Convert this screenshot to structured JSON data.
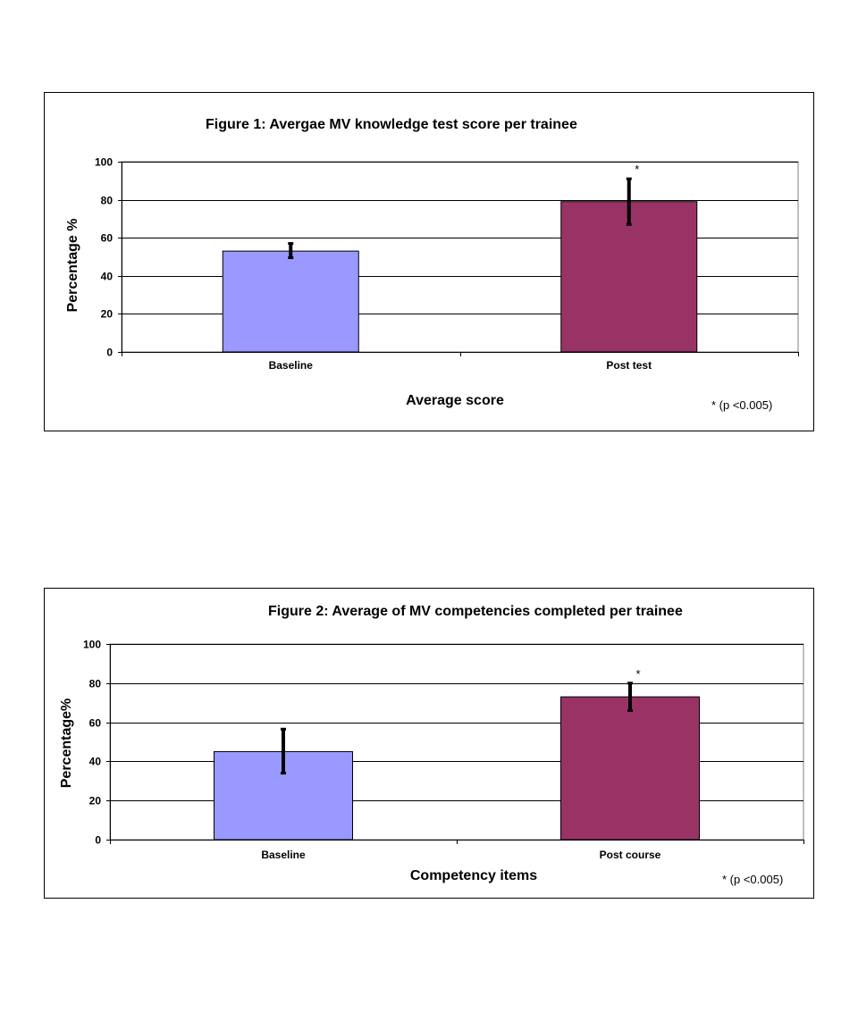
{
  "colors": {
    "baseline": "#9999FF",
    "post": "#993366",
    "grid": "#000000",
    "error": "#000000"
  },
  "chart_data": [
    {
      "type": "bar",
      "title": "Figure 1: Avergae MV knowledge test score per trainee",
      "xlabel": "Average score",
      "ylabel": "Percentage %",
      "ylim": [
        0,
        100
      ],
      "yticks": [
        "0",
        "20",
        "40",
        "60",
        "80",
        "100"
      ],
      "categories": [
        "Baseline",
        "Post test"
      ],
      "values": [
        53,
        79
      ],
      "error_low": [
        49.5,
        67
      ],
      "error_high": [
        57,
        91
      ],
      "significance": [
        "",
        "*"
      ],
      "grid": true,
      "note": "* (p <0.005)"
    },
    {
      "type": "bar",
      "title": "Figure 2: Average of MV competencies completed per trainee",
      "xlabel": "Competency items",
      "ylabel": "Percentage%",
      "ylim": [
        0,
        100
      ],
      "yticks": [
        "0",
        "20",
        "40",
        "60",
        "80",
        "100"
      ],
      "categories": [
        "Baseline",
        "Post course"
      ],
      "values": [
        45,
        73
      ],
      "error_low": [
        34,
        66
      ],
      "error_high": [
        56.5,
        80
      ],
      "significance": [
        "",
        "*"
      ],
      "grid": true,
      "note": "* (p <0.005)"
    }
  ]
}
